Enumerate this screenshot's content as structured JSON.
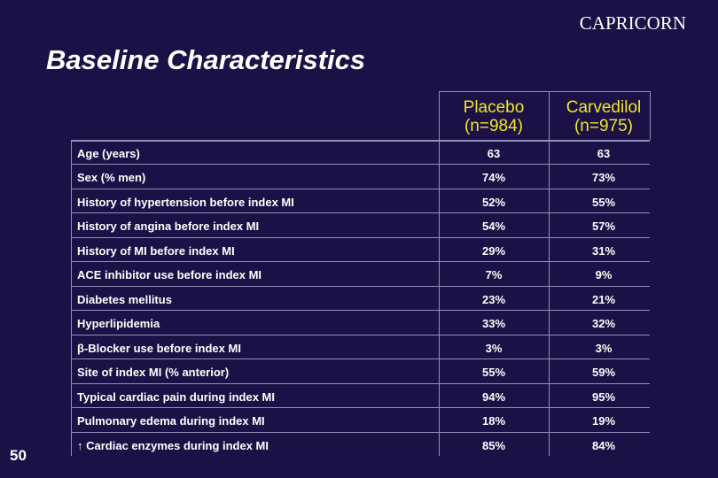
{
  "header": {
    "brand": "CAPRICORN",
    "title": "Baseline Characteristics"
  },
  "table": {
    "columns": [
      {
        "name": "Placebo",
        "n": "(n=984)"
      },
      {
        "name": "Carvedilol",
        "n": "(n=975)"
      }
    ],
    "rows": [
      [
        "Age (years)",
        "63",
        "63"
      ],
      [
        "Sex (% men)",
        "74%",
        "73%"
      ],
      [
        "History of hypertension before index MI",
        "52%",
        "55%"
      ],
      [
        "History of angina before index MI",
        "54%",
        "57%"
      ],
      [
        "History of MI before index MI",
        "29%",
        "31%"
      ],
      [
        "ACE inhibitor use before index MI",
        "7%",
        "9%"
      ],
      [
        "Diabetes mellitus",
        "23%",
        "21%"
      ],
      [
        "Hyperlipidemia",
        "33%",
        "32%"
      ],
      [
        "β-Blocker use before index MI",
        "3%",
        "3%"
      ],
      [
        "Site of index MI (% anterior)",
        "55%",
        "59%"
      ],
      [
        "Typical cardiac pain during index MI",
        "94%",
        "95%"
      ],
      [
        "Pulmonary edema during index MI",
        "18%",
        "19%"
      ],
      [
        "↑ Cardiac enzymes during index MI",
        "85%",
        "84%"
      ]
    ]
  },
  "footer": {
    "page": "50"
  }
}
